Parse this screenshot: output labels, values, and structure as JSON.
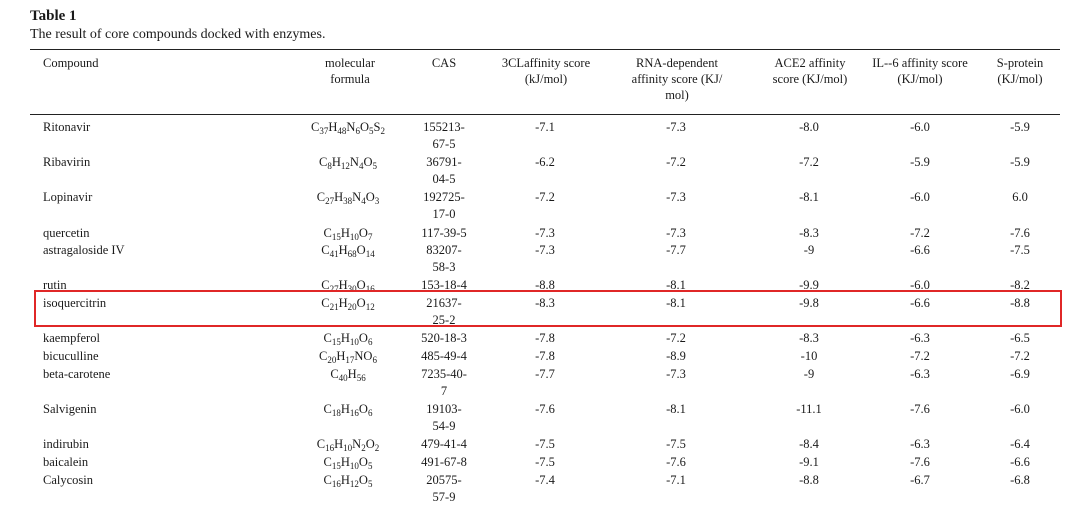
{
  "caption": {
    "label": "Table 1",
    "title": "The result of core compounds docked with enzymes."
  },
  "colors": {
    "highlight": "#e02727"
  },
  "columns": [
    {
      "key": "name",
      "label": "Compound"
    },
    {
      "key": "formula",
      "label": "molecular formula"
    },
    {
      "key": "cas",
      "label": "CAS"
    },
    {
      "key": "clpro",
      "label": "3CLaffinity score (kJ/mol)"
    },
    {
      "key": "rdrp",
      "label": "RNA-dependent affinity score (KJ/ mol)"
    },
    {
      "key": "ace2",
      "label": "ACE2 affinity score (KJ/mol)"
    },
    {
      "key": "il6",
      "label": "IL--6 affinity score (KJ/mol)"
    },
    {
      "key": "spike",
      "label": "S-protein (KJ/mol)"
    }
  ],
  "rows": [
    {
      "name": "Ritonavir",
      "formula": [
        [
          "C",
          "37"
        ],
        [
          "H",
          "48"
        ],
        [
          "N",
          "6"
        ],
        [
          "O",
          "5"
        ],
        [
          "S",
          "2"
        ]
      ],
      "cas": [
        "155213-",
        "67-5"
      ],
      "clpro": "-7.1",
      "rdrp": "-7.3",
      "ace2": "-8.0",
      "il6": "-6.0",
      "spike": "-5.9"
    },
    {
      "name": "Ribavirin",
      "formula": [
        [
          "C",
          "8"
        ],
        [
          "H",
          "12"
        ],
        [
          "N",
          "4"
        ],
        [
          "O",
          "5"
        ]
      ],
      "cas": [
        "36791-",
        "04-5"
      ],
      "clpro": "-6.2",
      "rdrp": "-7.2",
      "ace2": "-7.2",
      "il6": "-5.9",
      "spike": "-5.9"
    },
    {
      "name": "Lopinavir",
      "formula": [
        [
          "C",
          "27"
        ],
        [
          "H",
          "38"
        ],
        [
          "N",
          "4"
        ],
        [
          "O",
          "3"
        ]
      ],
      "cas": [
        "192725-",
        "17-0"
      ],
      "clpro": "-7.2",
      "rdrp": "-7.3",
      "ace2": "-8.1",
      "il6": "-6.0",
      "spike": "6.0"
    },
    {
      "name": "quercetin",
      "formula": [
        [
          "C",
          "15"
        ],
        [
          "H",
          "10"
        ],
        [
          "O",
          "7"
        ]
      ],
      "cas": [
        "117-39-5"
      ],
      "clpro": "-7.3",
      "rdrp": "-7.3",
      "ace2": "-8.3",
      "il6": "-7.2",
      "spike": "-7.6"
    },
    {
      "name": "astragaloside IV",
      "formula": [
        [
          "C",
          "41"
        ],
        [
          "H",
          "68"
        ],
        [
          "O",
          "14"
        ]
      ],
      "cas": [
        "83207-",
        "58-3"
      ],
      "clpro": "-7.3",
      "rdrp": "-7.7",
      "ace2": "-9",
      "il6": "-6.6",
      "spike": "-7.5"
    },
    {
      "name": "rutin",
      "formula": [
        [
          "C",
          "27"
        ],
        [
          "H",
          "30"
        ],
        [
          "O",
          "16"
        ]
      ],
      "cas": [
        "153-18-4"
      ],
      "clpro": "-8.8",
      "rdrp": "-8.1",
      "ace2": "-9.9",
      "il6": "-6.0",
      "spike": "-8.2"
    },
    {
      "name": "isoquercitrin",
      "formula": [
        [
          "C",
          "21"
        ],
        [
          "H",
          "20"
        ],
        [
          "O",
          "12"
        ]
      ],
      "cas": [
        "21637-",
        "25-2"
      ],
      "clpro": "-8.3",
      "rdrp": "-8.1",
      "ace2": "-9.8",
      "il6": "-6.6",
      "spike": "-8.8",
      "highlighted": true
    },
    {
      "name": "kaempferol",
      "formula": [
        [
          "C",
          "15"
        ],
        [
          "H",
          "10"
        ],
        [
          "O",
          "6"
        ]
      ],
      "cas": [
        "520-18-3"
      ],
      "clpro": "-7.8",
      "rdrp": "-7.2",
      "ace2": "-8.3",
      "il6": "-6.3",
      "spike": "-6.5"
    },
    {
      "name": "bicuculline",
      "formula": [
        [
          "C",
          "20"
        ],
        [
          "H",
          "17"
        ],
        [
          "NO",
          "6"
        ]
      ],
      "cas": [
        "485-49-4"
      ],
      "clpro": "-7.8",
      "rdrp": "-8.9",
      "ace2": "-10",
      "il6": "-7.2",
      "spike": "-7.2"
    },
    {
      "name": "beta-carotene",
      "formula": [
        [
          "C",
          "40"
        ],
        [
          "H",
          "56"
        ]
      ],
      "cas": [
        "7235-40-",
        "7"
      ],
      "clpro": "-7.7",
      "rdrp": "-7.3",
      "ace2": "-9",
      "il6": "-6.3",
      "spike": "-6.9"
    },
    {
      "name": "Salvigenin",
      "formula": [
        [
          "C",
          "18"
        ],
        [
          "H",
          "16"
        ],
        [
          "O",
          "6"
        ]
      ],
      "cas": [
        "19103-",
        "54-9"
      ],
      "clpro": "-7.6",
      "rdrp": "-8.1",
      "ace2": "-11.1",
      "il6": "-7.6",
      "spike": "-6.0"
    },
    {
      "name": "indirubin",
      "formula": [
        [
          "C",
          "16"
        ],
        [
          "H",
          "10"
        ],
        [
          "N",
          "2"
        ],
        [
          "O",
          "2"
        ]
      ],
      "cas": [
        "479-41-4"
      ],
      "clpro": "-7.5",
      "rdrp": "-7.5",
      "ace2": "-8.4",
      "il6": "-6.3",
      "spike": "-6.4"
    },
    {
      "name": "baicalein",
      "formula": [
        [
          "C",
          "15"
        ],
        [
          "H",
          "10"
        ],
        [
          "O",
          "5"
        ]
      ],
      "cas": [
        "491-67-8"
      ],
      "clpro": "-7.5",
      "rdrp": "-7.6",
      "ace2": "-9.1",
      "il6": "-7.6",
      "spike": "-6.6"
    },
    {
      "name": "Calycosin",
      "formula": [
        [
          "C",
          "16"
        ],
        [
          "H",
          "12"
        ],
        [
          "O",
          "5"
        ]
      ],
      "cas": [
        "20575-",
        "57-9"
      ],
      "clpro": "-7.4",
      "rdrp": "-7.1",
      "ace2": "-8.8",
      "il6": "-6.7",
      "spike": "-6.8"
    }
  ]
}
